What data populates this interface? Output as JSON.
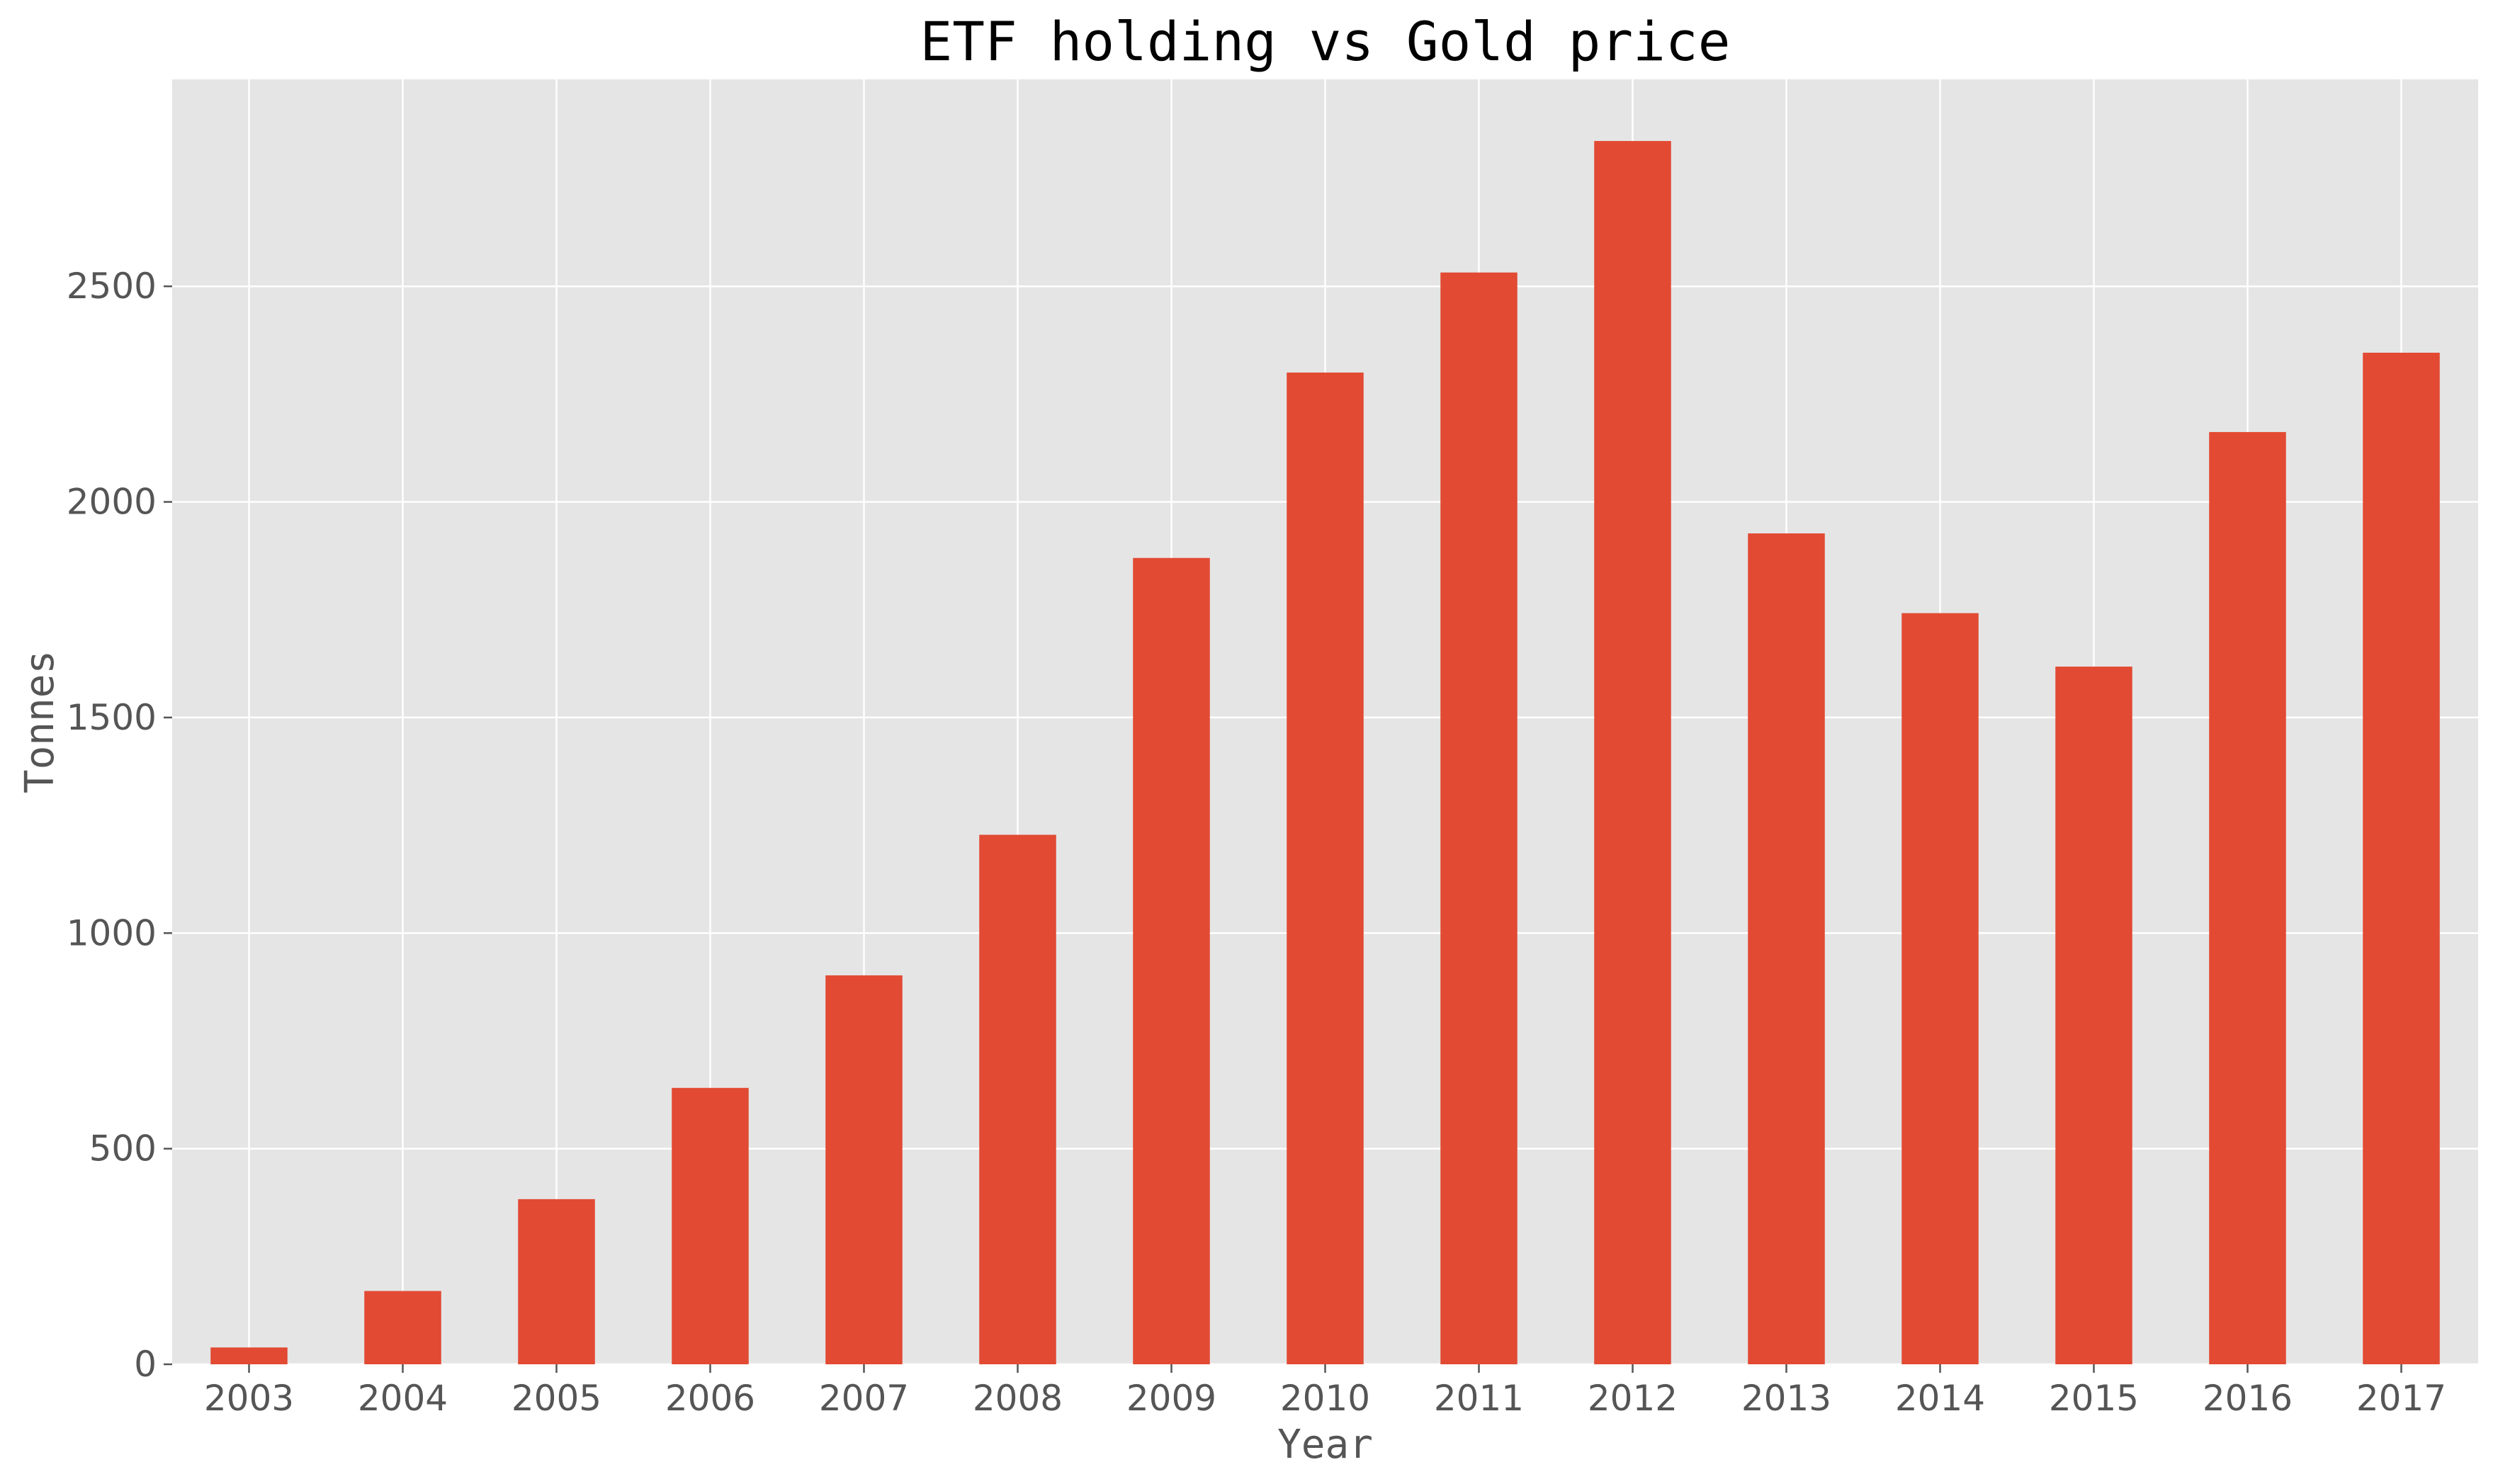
{
  "chart_data": {
    "type": "bar",
    "title": "ETF holding vs Gold price",
    "xlabel": "Year",
    "ylabel": "Tonnes",
    "categories": [
      "2003",
      "2004",
      "2005",
      "2006",
      "2007",
      "2008",
      "2009",
      "2010",
      "2011",
      "2012",
      "2013",
      "2014",
      "2015",
      "2016",
      "2017"
    ],
    "values": [
      39,
      170,
      383,
      641,
      902,
      1228,
      1870,
      2300,
      2532,
      2837,
      1927,
      1742,
      1618,
      2162,
      2346
    ],
    "yticks": [
      0,
      500,
      1000,
      1500,
      2000,
      2500
    ],
    "ylim": [
      0,
      2980
    ],
    "grid": true,
    "legend": "none",
    "colors": {
      "bar": "#E24A33",
      "plot_background": "#E5E5E5",
      "grid": "#FFFFFF",
      "tick_label": "#555555",
      "title": "#000000"
    }
  }
}
